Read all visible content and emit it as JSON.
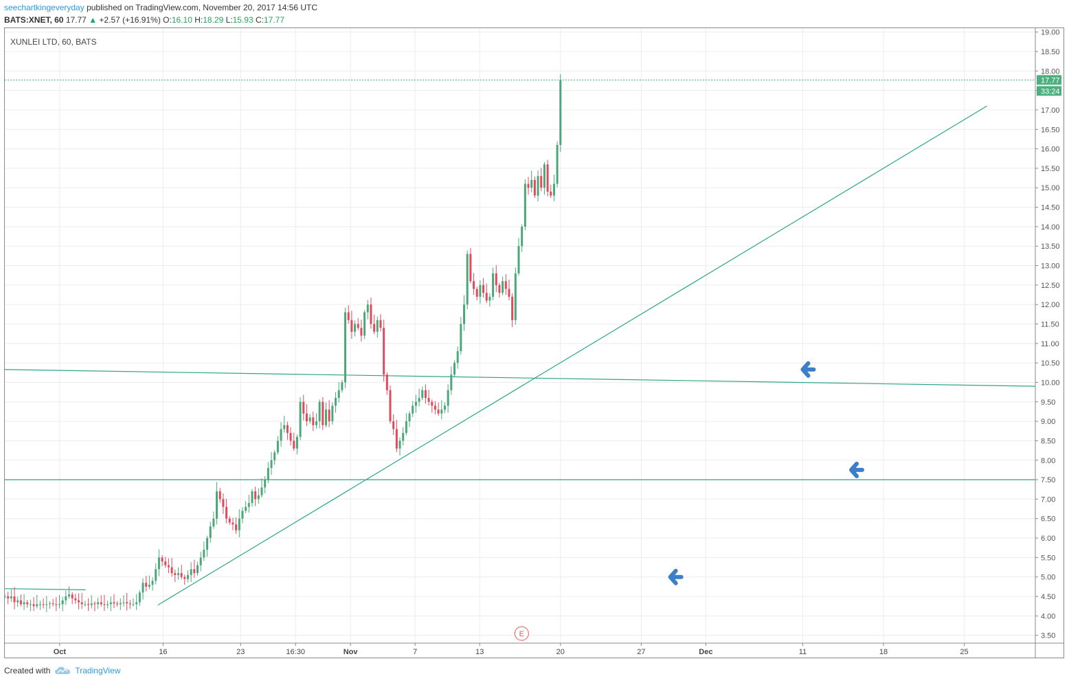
{
  "header": {
    "author": "seechartkingeveryday",
    "published": "published on TradingView.com, November 20, 2017 14:56 UTC"
  },
  "quote": {
    "symbol": "BATS:XNET, 60",
    "last": "17.77",
    "change": "+2.57 (+16.91%)",
    "o_label": "O:",
    "o": "16.10",
    "h_label": "H:",
    "h": "18.29",
    "l_label": "L:",
    "l": "15.93",
    "c_label": "C:",
    "c": "17.77"
  },
  "footer": {
    "created_with": "Created with",
    "brand": "TradingView"
  },
  "colors": {
    "up": "#4aa77a",
    "down": "#e04a5b",
    "trendline": "#2aa58a",
    "arrow": "#3a7fc8",
    "grid": "#ececec",
    "price_tag": "#4caf7d",
    "earnings": "#e05a5a"
  },
  "chart_data": {
    "type": "candlestick",
    "title": "XUNLEI LTD, 60, BATS",
    "ylim": [
      3.3,
      19.1
    ],
    "y_ticks": [
      "19.00",
      "18.50",
      "18.00",
      "17.50",
      "17.00",
      "16.50",
      "16.00",
      "15.50",
      "15.00",
      "14.50",
      "14.00",
      "13.50",
      "13.00",
      "12.50",
      "12.00",
      "11.50",
      "11.00",
      "10.50",
      "10.00",
      "9.50",
      "9.00",
      "8.50",
      "8.00",
      "7.50",
      "7.00",
      "6.50",
      "6.00",
      "5.50",
      "5.00",
      "4.50",
      "4.00",
      "3.50"
    ],
    "x_ticks": [
      {
        "label": "Oct",
        "t": 0.0,
        "bold": true
      },
      {
        "label": "16",
        "t": 1.6
      },
      {
        "label": "23",
        "t": 2.8
      },
      {
        "label": "16:30",
        "t": 3.65
      },
      {
        "label": "Nov",
        "t": 4.5,
        "bold": true
      },
      {
        "label": "7",
        "t": 5.5
      },
      {
        "label": "13",
        "t": 6.5
      },
      {
        "label": "20",
        "t": 7.75
      },
      {
        "label": "27",
        "t": 9.0
      },
      {
        "label": "Dec",
        "t": 10.0,
        "bold": true
      },
      {
        "label": "11",
        "t": 11.5
      },
      {
        "label": "18",
        "t": 12.75
      },
      {
        "label": "25",
        "t": 14.0
      }
    ],
    "xlim": [
      -0.85,
      15.1
    ],
    "last_price": "17.77",
    "countdown": "33:24",
    "earnings_marker": {
      "label": "E",
      "t": 7.15
    },
    "candles_hourly": [
      4.5,
      4.45,
      4.5,
      4.35,
      4.4,
      4.3,
      4.35,
      4.3,
      4.3,
      4.25,
      4.3,
      4.3,
      4.28,
      4.3,
      4.32,
      4.3,
      4.28,
      4.3,
      4.4,
      4.5,
      4.55,
      4.45,
      4.4,
      4.35,
      4.3,
      4.3,
      4.28,
      4.32,
      4.3,
      4.35,
      4.3,
      4.28,
      4.3,
      4.35,
      4.32,
      4.3,
      4.33,
      4.35,
      4.32,
      4.3,
      4.3,
      4.35,
      4.6,
      4.85,
      4.75,
      4.8,
      4.9,
      5.2,
      5.5,
      5.4,
      5.3,
      5.25,
      5.1,
      5.05,
      5.1,
      5.0,
      4.95,
      5.05,
      5.2,
      5.1,
      5.3,
      5.5,
      5.7,
      6.0,
      6.3,
      6.5,
      7.2,
      7.0,
      6.8,
      6.5,
      6.4,
      6.35,
      6.2,
      6.5,
      6.7,
      6.8,
      6.9,
      7.2,
      7.0,
      7.1,
      7.3,
      7.5,
      7.8,
      8.0,
      8.2,
      8.5,
      8.8,
      8.9,
      8.7,
      8.5,
      8.3,
      8.6,
      9.5,
      9.2,
      9.0,
      9.1,
      8.9,
      9.0,
      9.5,
      8.9,
      9.3,
      9.0,
      9.4,
      9.6,
      9.8,
      10.0,
      11.8,
      11.6,
      11.3,
      11.5,
      11.4,
      11.2,
      11.8,
      12.0,
      11.5,
      11.3,
      11.6,
      11.4,
      10.2,
      9.8,
      9.0,
      8.8,
      8.3,
      8.5,
      8.7,
      9.0,
      9.2,
      9.4,
      9.5,
      9.6,
      9.8,
      9.6,
      9.5,
      9.4,
      9.3,
      9.2,
      9.3,
      9.4,
      9.8,
      10.2,
      10.5,
      10.8,
      11.5,
      12.0,
      13.3,
      12.6,
      12.4,
      12.2,
      12.5,
      12.3,
      12.1,
      12.2,
      12.8,
      12.5,
      12.3,
      12.6,
      12.4,
      12.2,
      11.6,
      12.8,
      13.5,
      14.0,
      15.1,
      15.0,
      15.2,
      14.8,
      15.3,
      15.0,
      15.6,
      14.9,
      14.8,
      15.1,
      16.1,
      17.77
    ],
    "trendlines": [
      {
        "name": "rising-support",
        "from": {
          "t": 1.52,
          "v": 4.28
        },
        "to": {
          "t": 14.35,
          "v": 17.1
        }
      },
      {
        "name": "horizontal-10",
        "from": {
          "t": -0.85,
          "v": 10.33
        },
        "to": {
          "t": 15.1,
          "v": 9.9
        }
      },
      {
        "name": "horizontal-7.5",
        "from": {
          "t": -0.85,
          "v": 7.5
        },
        "to": {
          "t": 15.1,
          "v": 7.5
        }
      },
      {
        "name": "early-flat",
        "from": {
          "t": -0.85,
          "v": 4.7
        },
        "to": {
          "t": 0.4,
          "v": 4.67
        }
      }
    ],
    "arrows": [
      {
        "t": 11.5,
        "v": 10.33
      },
      {
        "t": 12.25,
        "v": 7.75
      },
      {
        "t": 9.45,
        "v": 5.0
      }
    ]
  }
}
